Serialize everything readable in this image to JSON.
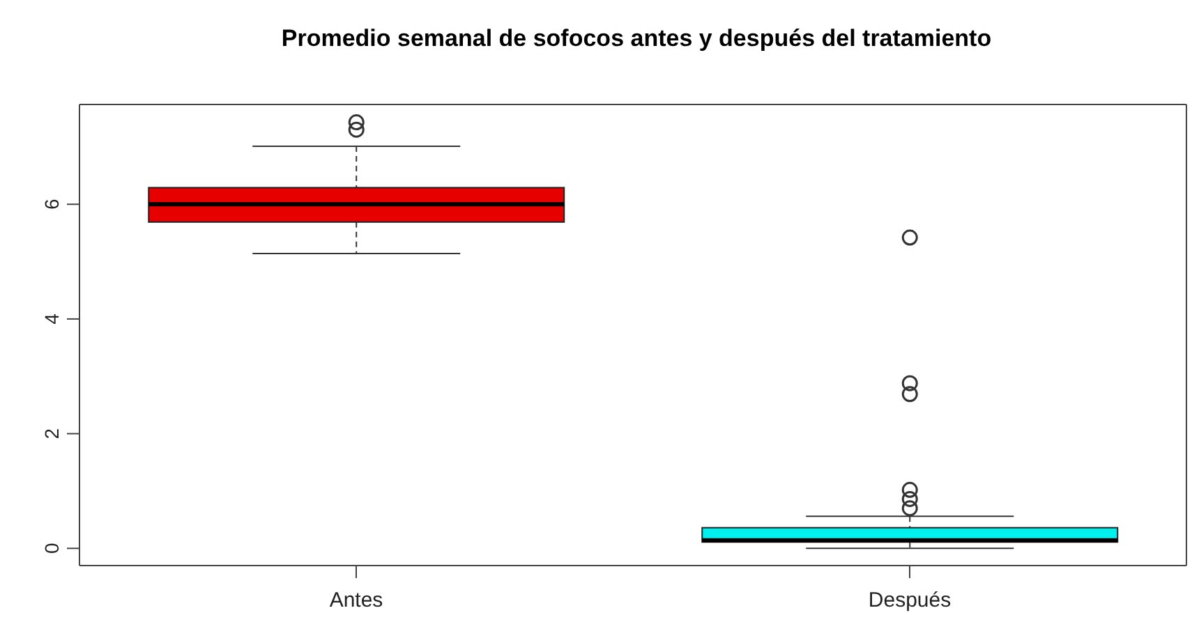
{
  "chart_data": {
    "type": "box",
    "title": "Promedio semanal de sofocos antes y después del tratamiento",
    "categories": [
      "Antes",
      "Después"
    ],
    "colors": [
      "#e60000",
      "#00f0f0"
    ],
    "boxes": [
      {
        "low": 5.14,
        "q1": 5.69,
        "median": 6.0,
        "q3": 6.29,
        "high": 7.01,
        "outliers": [
          7.3,
          7.43
        ]
      },
      {
        "low": 0.0,
        "q1": 0.11,
        "median": 0.14,
        "q3": 0.36,
        "high": 0.56,
        "outliers": [
          0.7,
          0.86,
          1.02,
          2.69,
          2.88,
          5.42
        ]
      }
    ],
    "ylim": [
      -0.3,
      7.74
    ],
    "yticks": [
      0,
      2,
      4,
      6
    ]
  }
}
